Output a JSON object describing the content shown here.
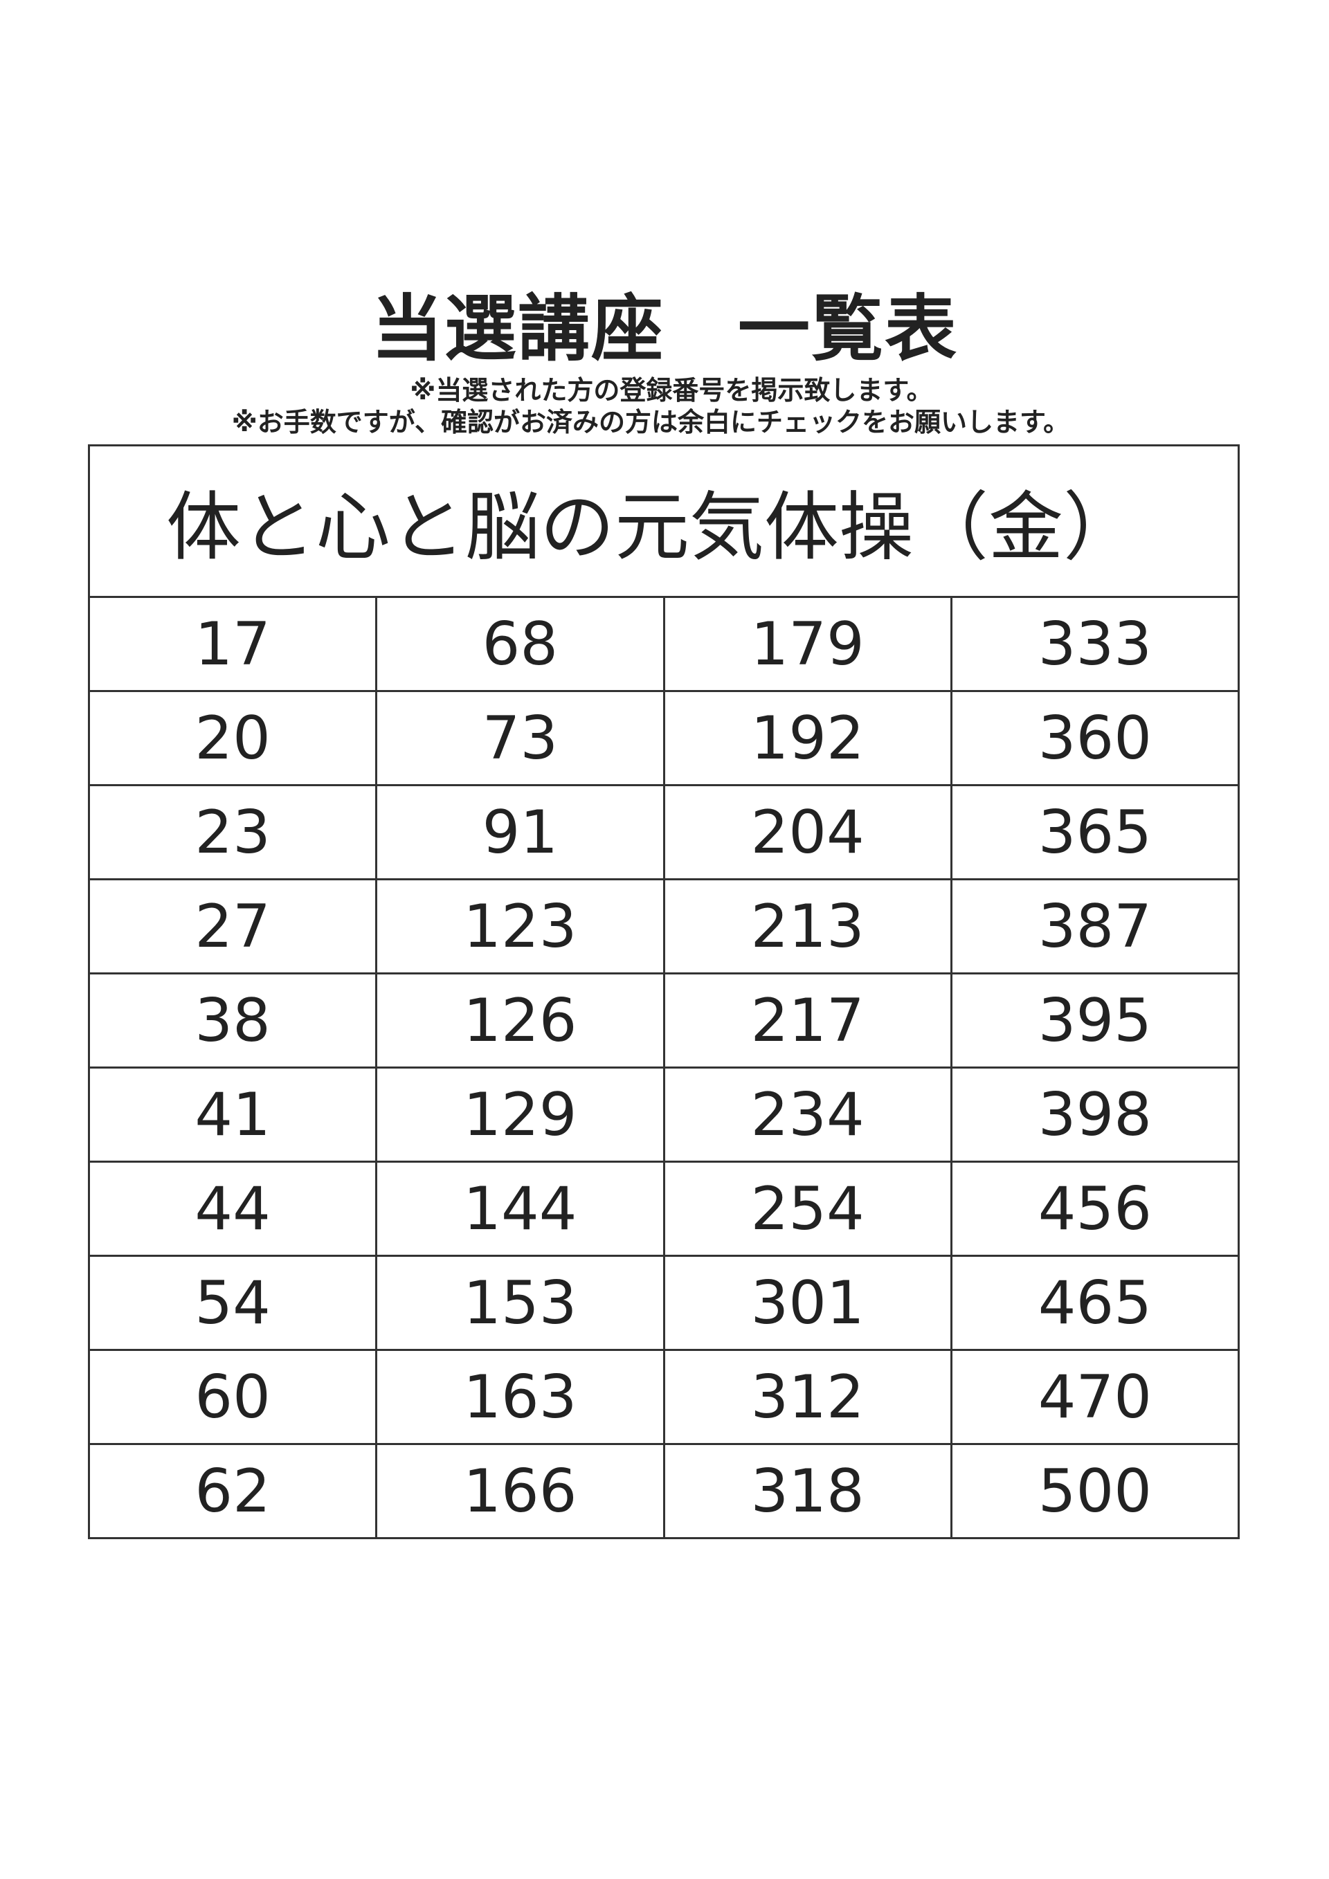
{
  "title": "当選講座　一覧表",
  "notes": [
    "※当選された方の登録番号を掲示致します。",
    "※お手数ですが、確認がお済みの方は余白にチェックをお願いします。"
  ],
  "course": {
    "name": "体と心と脳の元気体操（金）",
    "rows": [
      [
        "17",
        "68",
        "179",
        "333"
      ],
      [
        "20",
        "73",
        "192",
        "360"
      ],
      [
        "23",
        "91",
        "204",
        "365"
      ],
      [
        "27",
        "123",
        "213",
        "387"
      ],
      [
        "38",
        "126",
        "217",
        "395"
      ],
      [
        "41",
        "129",
        "234",
        "398"
      ],
      [
        "44",
        "144",
        "254",
        "456"
      ],
      [
        "54",
        "153",
        "301",
        "465"
      ],
      [
        "60",
        "163",
        "312",
        "470"
      ],
      [
        "62",
        "166",
        "318",
        "500"
      ]
    ]
  }
}
